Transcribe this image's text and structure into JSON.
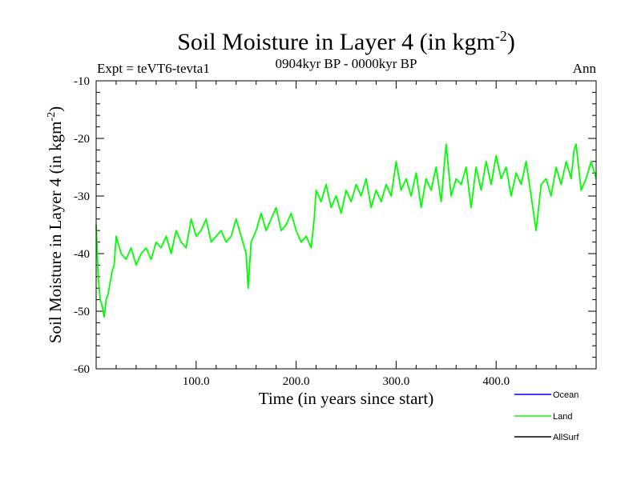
{
  "chart_data": {
    "type": "line",
    "title_main": "Soil Moisture in Layer 4 (in kgm",
    "title_exp": "-2",
    "title_close": ")",
    "subtitle_left": "Expt = teVT6-tevta1",
    "subtitle_center": "0904kyr BP - 0000kyr BP",
    "subtitle_right": "Ann",
    "xlabel": "Time (in years since start)",
    "ylabel_main": "Soil Moisture in Layer 4 (in kgm",
    "ylabel_exp": "-2",
    "ylabel_close": ")",
    "xlim": [
      0,
      500
    ],
    "ylim": [
      -60,
      -10
    ],
    "x_ticks": [
      100,
      200,
      300,
      400
    ],
    "x_tick_labels": [
      "100.0",
      "200.0",
      "300.0",
      "400.0"
    ],
    "y_ticks": [
      -60,
      -50,
      -40,
      -30,
      -20,
      -10
    ],
    "y_tick_labels": [
      "-60",
      "-50",
      "-40",
      "-30",
      "-20",
      "-10"
    ],
    "legend": [
      {
        "name": "Ocean",
        "color": "#0000ff"
      },
      {
        "name": "Land",
        "color": "#00ff00"
      },
      {
        "name": "AllSurf",
        "color": "#000000"
      }
    ],
    "series": [
      {
        "name": "Land",
        "color": "#00ff00",
        "x": [
          0,
          2,
          4,
          6,
          8,
          10,
          12,
          14,
          16,
          18,
          20,
          25,
          30,
          35,
          40,
          45,
          50,
          55,
          60,
          65,
          70,
          75,
          80,
          85,
          90,
          95,
          100,
          105,
          110,
          115,
          120,
          125,
          130,
          135,
          140,
          145,
          150,
          152,
          155,
          160,
          165,
          170,
          175,
          180,
          185,
          190,
          195,
          200,
          205,
          210,
          215,
          218,
          220,
          225,
          230,
          235,
          240,
          245,
          250,
          255,
          260,
          265,
          270,
          275,
          280,
          285,
          290,
          295,
          300,
          305,
          310,
          315,
          320,
          325,
          330,
          335,
          340,
          345,
          350,
          355,
          360,
          365,
          370,
          375,
          380,
          385,
          390,
          395,
          400,
          405,
          410,
          415,
          420,
          425,
          430,
          435,
          440,
          445,
          450,
          455,
          460,
          465,
          470,
          475,
          478,
          480,
          485,
          490,
          495,
          500
        ],
        "values": [
          -35,
          -44,
          -48,
          -49,
          -51,
          -48,
          -47,
          -45,
          -43,
          -42,
          -37,
          -40,
          -41,
          -39,
          -42,
          -40,
          -39,
          -41,
          -38,
          -39,
          -37,
          -40,
          -36,
          -38,
          -39,
          -34,
          -37,
          -36,
          -34,
          -38,
          -37,
          -36,
          -38,
          -37,
          -34,
          -37,
          -40,
          -46,
          -38,
          -36,
          -33,
          -36,
          -34,
          -32,
          -36,
          -35,
          -33,
          -36,
          -38,
          -37,
          -39,
          -34,
          -29,
          -31,
          -28,
          -32,
          -30,
          -33,
          -29,
          -31,
          -28,
          -30,
          -27,
          -32,
          -29,
          -31,
          -28,
          -30,
          -24,
          -29,
          -27,
          -30,
          -26,
          -32,
          -27,
          -29,
          -25,
          -31,
          -21,
          -30,
          -27,
          -28,
          -25,
          -32,
          -25,
          -29,
          -24,
          -28,
          -23,
          -27,
          -25,
          -30,
          -26,
          -28,
          -24,
          -30,
          -36,
          -28,
          -27,
          -30,
          -25,
          -28,
          -24,
          -27,
          -22,
          -21,
          -29,
          -27,
          -24,
          -27
        ]
      }
    ]
  }
}
